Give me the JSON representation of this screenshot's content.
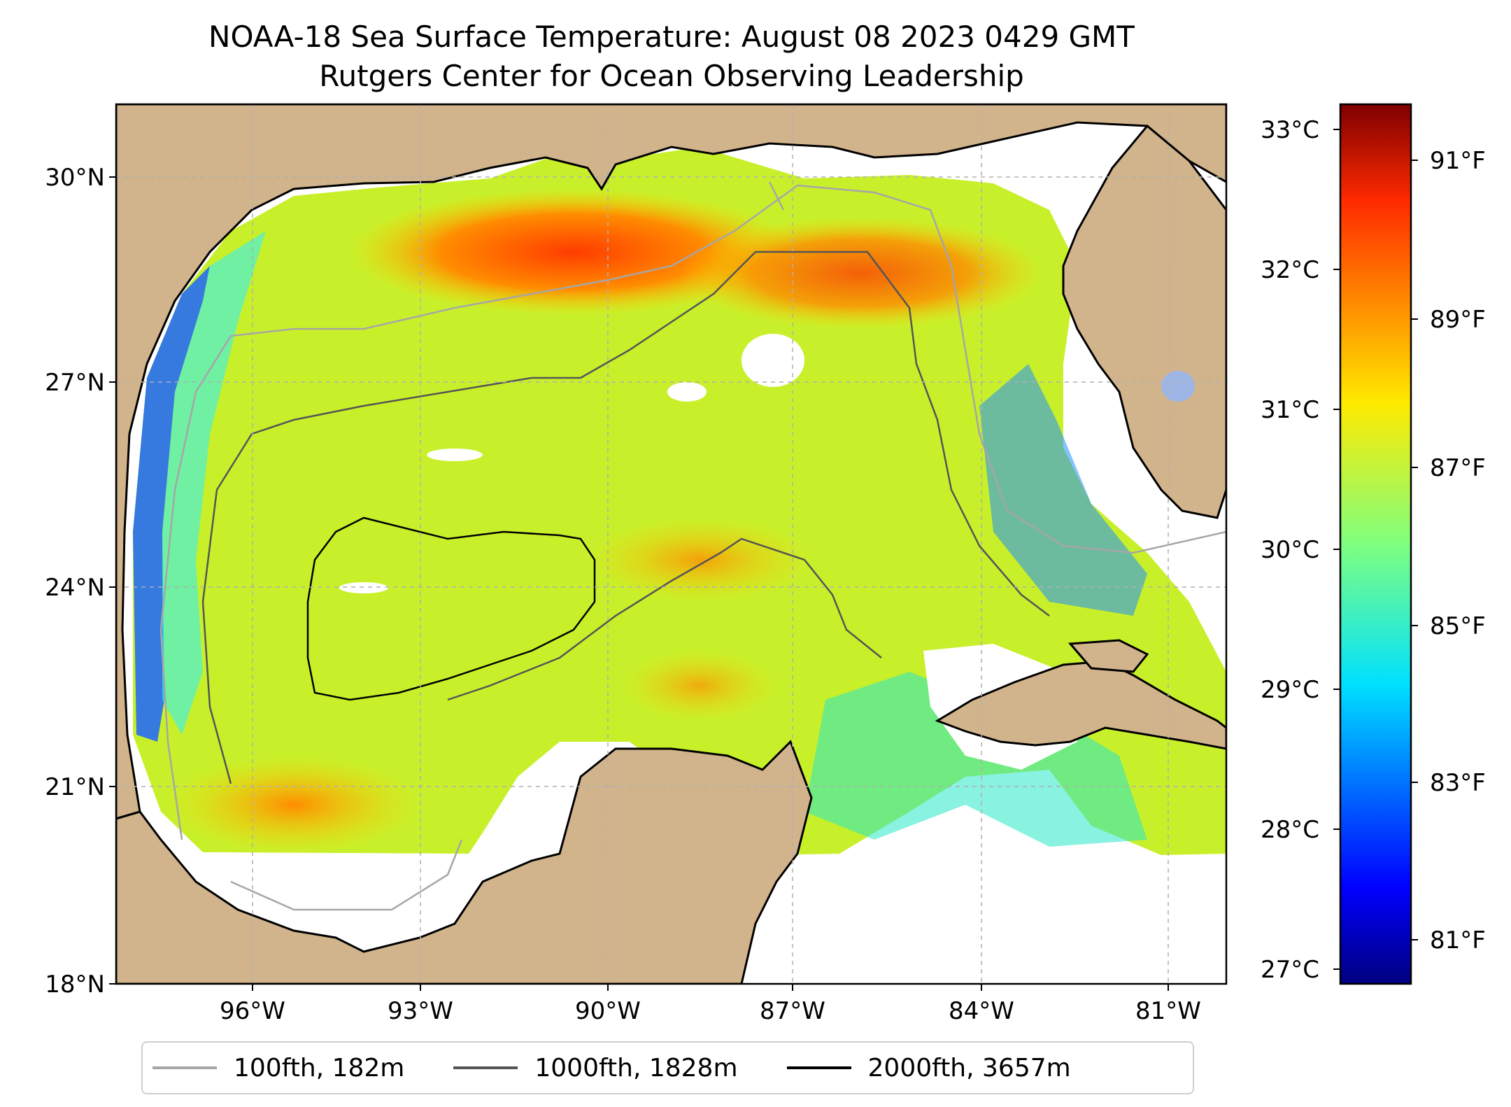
{
  "title": {
    "line1": "NOAA-18 Sea Surface Temperature: August 08 2023 0429 GMT",
    "line2": "Rutgers Center for Ocean Observing Leadership"
  },
  "map": {
    "lat_ticks": [
      "30°N",
      "27°N",
      "24°N",
      "21°N",
      "18°N"
    ],
    "lon_ticks": [
      "96°W",
      "93°W",
      "90°W",
      "87°W",
      "84°W",
      "81°W"
    ],
    "land_color": "#d2b48c",
    "no_data_color": "#ffffff"
  },
  "colorbar": {
    "celsius_ticks": [
      "33°C",
      "32°C",
      "31°C",
      "30°C",
      "29°C",
      "28°C",
      "27°C"
    ],
    "fahrenheit_ticks": [
      "91°F",
      "89°F",
      "87°F",
      "85°F",
      "83°F",
      "81°F"
    ],
    "colormap": "jet"
  },
  "legend": {
    "items": [
      {
        "label": "100fth, 182m",
        "color": "#a6a6a6"
      },
      {
        "label": "1000fth, 1828m",
        "color": "#555555"
      },
      {
        "label": "2000fth, 3657m",
        "color": "#000000"
      }
    ]
  }
}
